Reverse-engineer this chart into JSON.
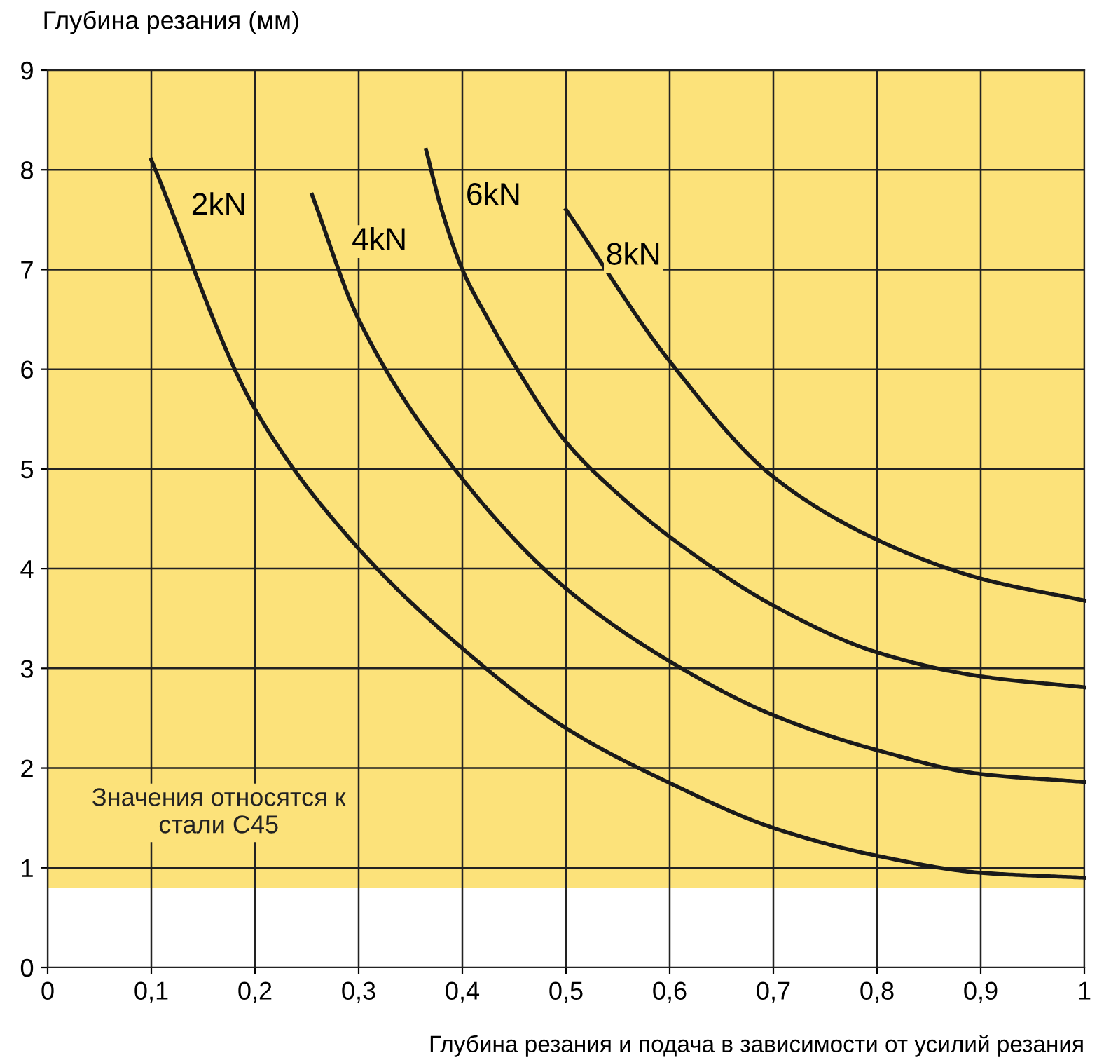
{
  "chart_data": {
    "type": "line",
    "ylabel": "Глубина резания (мм)",
    "xlabel": "Глубина резания и подача в зависимости от усилий резания",
    "xlim": [
      0,
      1
    ],
    "ylim": [
      0,
      9
    ],
    "xticks": [
      0,
      {
        "value": 0.1,
        "label": "0,1"
      },
      {
        "value": 0.2,
        "label": "0,2"
      },
      {
        "value": 0.3,
        "label": "0,3"
      },
      {
        "value": 0.4,
        "label": "0,4"
      },
      {
        "value": 0.5,
        "label": "0,5"
      },
      {
        "value": 0.6,
        "label": "0,6"
      },
      {
        "value": 0.7,
        "label": "0,7"
      },
      {
        "value": 0.8,
        "label": "0,8"
      },
      {
        "value": 0.9,
        "label": "0,9"
      },
      1
    ],
    "yticks": [
      0,
      1,
      2,
      3,
      4,
      5,
      6,
      7,
      8,
      9
    ],
    "grid": true,
    "legend": false,
    "marker": "none",
    "line_style": "solid",
    "bands": [
      {
        "axis": "y",
        "from": 0.8,
        "to": 9,
        "color": "#fce27a"
      }
    ],
    "annotations": [
      {
        "text": "Значения относятся к\nстали С45"
      }
    ],
    "series": [
      {
        "name": "2kN",
        "color": "#1a1a1a",
        "x": [
          0.1,
          0.2,
          0.3,
          0.4,
          0.5,
          0.6,
          0.7,
          0.8,
          0.9,
          1.0
        ],
        "values": [
          8.1,
          5.6,
          4.2,
          3.2,
          2.4,
          1.85,
          1.4,
          1.12,
          0.95,
          0.9
        ]
      },
      {
        "name": "4kN",
        "color": "#1a1a1a",
        "x": [
          0.255,
          0.3,
          0.4,
          0.5,
          0.6,
          0.7,
          0.8,
          0.9,
          1.0
        ],
        "values": [
          7.75,
          6.5,
          4.9,
          3.8,
          3.07,
          2.53,
          2.18,
          1.94,
          1.86
        ]
      },
      {
        "name": "6kN",
        "color": "#1a1a1a",
        "x": [
          0.365,
          0.38,
          0.4,
          0.425,
          0.45,
          0.5,
          0.55,
          0.6,
          0.7,
          0.8,
          0.9,
          1.0
        ],
        "values": [
          8.2,
          7.6,
          7.0,
          6.5,
          6.05,
          5.27,
          4.75,
          4.32,
          3.63,
          3.16,
          2.92,
          2.81
        ]
      },
      {
        "name": "8kN",
        "color": "#1a1a1a",
        "x": [
          0.5,
          0.6,
          0.7,
          0.8,
          0.9,
          1.0
        ],
        "values": [
          7.6,
          6.08,
          4.92,
          4.29,
          3.9,
          3.68
        ]
      }
    ]
  }
}
